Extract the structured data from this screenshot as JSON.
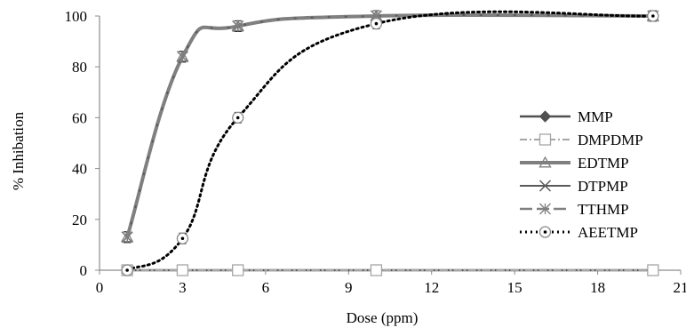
{
  "chart_data": {
    "type": "line",
    "title": "",
    "xlabel": "Dose (ppm)",
    "ylabel": "% Inhibation",
    "xlim": [
      0,
      21
    ],
    "ylim": [
      0,
      100
    ],
    "xticks": [
      "0",
      "3",
      "6",
      "9",
      "12",
      "15",
      "18",
      "21"
    ],
    "yticks": [
      "0",
      "20",
      "40",
      "60",
      "80",
      "100"
    ],
    "legend_position": "right",
    "grid": false,
    "series": [
      {
        "name": "MMP",
        "marker": "diamond",
        "color": "#505050",
        "dash": "",
        "smooth": false,
        "x": [
          1,
          3,
          5,
          10,
          20
        ],
        "y": [
          0,
          0,
          0,
          0,
          0
        ]
      },
      {
        "name": "DMPDMP",
        "marker": "square",
        "color": "#a6a6a6",
        "dash": "8 3 2 3",
        "smooth": false,
        "x": [
          1,
          3,
          5,
          10,
          20
        ],
        "y": [
          0,
          0,
          0,
          0,
          0
        ]
      },
      {
        "name": "EDTMP",
        "marker": "triangle",
        "color": "#7f7f7f",
        "dash": "",
        "smooth": true,
        "x": [
          1,
          3,
          5,
          10,
          20
        ],
        "y": [
          13,
          84,
          96,
          100,
          100
        ]
      },
      {
        "name": "DTPMP",
        "marker": "x",
        "color": "#595959",
        "dash": "",
        "smooth": true,
        "x": [
          1,
          3,
          5,
          10,
          20
        ],
        "y": [
          13,
          84,
          96,
          100,
          100
        ]
      },
      {
        "name": "TTHMP",
        "marker": "star",
        "color": "#808080",
        "dash": "14 5",
        "smooth": true,
        "x": [
          1,
          3,
          5,
          10,
          20
        ],
        "y": [
          13,
          84,
          96,
          100,
          100
        ]
      },
      {
        "name": "AEETMP",
        "marker": "circle",
        "color": "#000000",
        "dash": "2 4",
        "smooth": true,
        "x": [
          1,
          3,
          5,
          10,
          20
        ],
        "y": [
          0,
          12.5,
          60,
          97,
          100
        ]
      }
    ]
  }
}
